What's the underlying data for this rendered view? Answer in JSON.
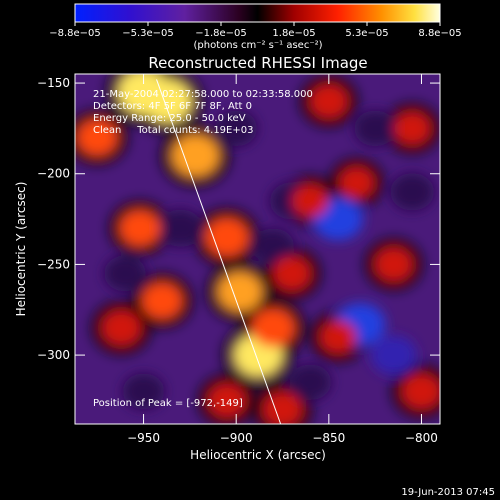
{
  "chart_data": {
    "type": "heatmap",
    "title": "Reconstructed RHESSI Image",
    "xlabel": "Heliocentric X (arcsec)",
    "ylabel": "Heliocentric Y (arcsec)",
    "xlim": [
      -987,
      -790
    ],
    "ylim": [
      -338,
      -145
    ],
    "xticks": [
      -950,
      -900,
      -850,
      -800
    ],
    "yticks": [
      -300,
      -250,
      -200,
      -150
    ],
    "xtick_labels": [
      "−950",
      "−900",
      "−850",
      "−800"
    ],
    "ytick_labels": [
      "−300",
      "−250",
      "−200",
      "−150"
    ],
    "colorbar": {
      "range": [
        -8.8e-05,
        8.8e-05
      ],
      "tick_labels": [
        "−8.8e−05",
        "−5.3e−05",
        "−1.8e−05",
        "1.8e−05",
        "5.3e−05",
        "8.8e−05"
      ],
      "unit_label": "(photons cm⁻² s⁻¹ asec⁻²)"
    },
    "info_lines": [
      "21-May-2004 02:27:58.000 to 02:33:58.000",
      "Detectors: 4F 5F 6F 7F 8F, Att 0",
      "Energy Range: 25.0 - 50.0 keV",
      "Clean     Total counts: 4.19E+03"
    ],
    "peak_label": "Position of Peak = [-972,-149]",
    "limb_line": [
      [
        -943,
        -148
      ],
      [
        -876,
        -338
      ]
    ],
    "hotspots": [
      {
        "x": -950,
        "y": -155,
        "v": 1.0
      },
      {
        "x": -937,
        "y": -160,
        "v": 0.9
      },
      {
        "x": -922,
        "y": -190,
        "v": 0.85
      },
      {
        "x": -905,
        "y": -235,
        "v": 0.7
      },
      {
        "x": -898,
        "y": -265,
        "v": 0.75
      },
      {
        "x": -888,
        "y": -300,
        "v": 0.9
      },
      {
        "x": -880,
        "y": -285,
        "v": 0.7
      },
      {
        "x": -952,
        "y": -230,
        "v": 0.6
      },
      {
        "x": -962,
        "y": -285,
        "v": 0.55
      },
      {
        "x": -940,
        "y": -270,
        "v": 0.6
      },
      {
        "x": -850,
        "y": -160,
        "v": 0.5
      },
      {
        "x": -860,
        "y": -215,
        "v": 0.45
      },
      {
        "x": -835,
        "y": -205,
        "v": 0.4
      },
      {
        "x": -870,
        "y": -255,
        "v": 0.5
      },
      {
        "x": -845,
        "y": -290,
        "v": 0.45
      },
      {
        "x": -815,
        "y": -250,
        "v": 0.5
      },
      {
        "x": -800,
        "y": -320,
        "v": 0.55
      },
      {
        "x": -905,
        "y": -325,
        "v": 0.5
      },
      {
        "x": -875,
        "y": -330,
        "v": 0.55
      },
      {
        "x": -975,
        "y": -180,
        "v": 0.6
      },
      {
        "x": -805,
        "y": -175,
        "v": 0.45
      }
    ],
    "coldspots": [
      {
        "x": -845,
        "y": -225,
        "v": -0.9
      },
      {
        "x": -833,
        "y": -283,
        "v": -0.9
      },
      {
        "x": -870,
        "y": -215,
        "v": -0.6
      },
      {
        "x": -815,
        "y": -300,
        "v": -0.7
      },
      {
        "x": -825,
        "y": -175,
        "v": -0.5
      },
      {
        "x": -960,
        "y": -255,
        "v": -0.5
      },
      {
        "x": -930,
        "y": -230,
        "v": -0.6
      },
      {
        "x": -950,
        "y": -320,
        "v": -0.5
      },
      {
        "x": -900,
        "y": -175,
        "v": -0.5
      },
      {
        "x": -880,
        "y": -240,
        "v": -0.5
      },
      {
        "x": -805,
        "y": -210,
        "v": -0.6
      },
      {
        "x": -860,
        "y": -315,
        "v": -0.5
      }
    ]
  },
  "footer": {
    "date": "19-Jun-2013 07:45"
  }
}
